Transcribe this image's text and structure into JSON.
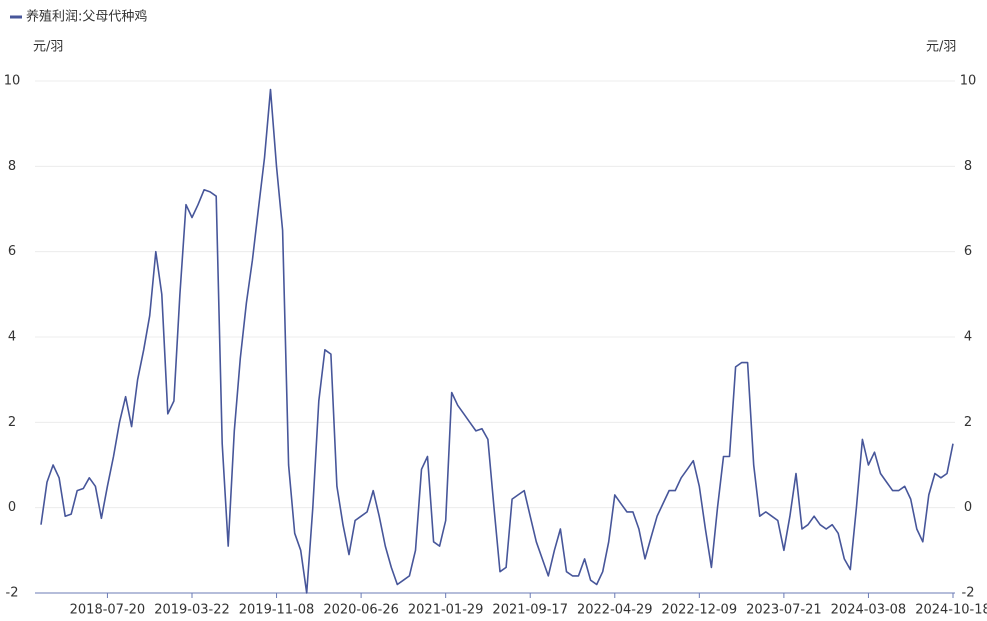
{
  "chart_data": {
    "type": "line",
    "y_label": "元/羽",
    "y2_label": "元/羽",
    "categories": [
      null,
      null,
      null,
      null,
      null,
      null,
      null,
      null,
      null,
      null,
      null,
      "2018-07-20",
      null,
      null,
      null,
      null,
      null,
      null,
      null,
      null,
      null,
      null,
      null,
      null,
      null,
      "2019-03-22",
      null,
      null,
      null,
      null,
      null,
      null,
      null,
      null,
      null,
      null,
      null,
      null,
      null,
      "2019-11-08",
      null,
      null,
      null,
      null,
      null,
      null,
      null,
      null,
      null,
      null,
      null,
      null,
      null,
      "2020-06-26",
      null,
      null,
      null,
      null,
      null,
      null,
      null,
      null,
      null,
      null,
      null,
      null,
      null,
      "2021-01-29",
      null,
      null,
      null,
      null,
      null,
      null,
      null,
      null,
      null,
      null,
      null,
      null,
      null,
      "2021-09-17",
      null,
      null,
      null,
      null,
      null,
      null,
      null,
      null,
      null,
      null,
      null,
      null,
      null,
      "2022-04-29",
      null,
      null,
      null,
      null,
      null,
      null,
      null,
      null,
      null,
      null,
      null,
      null,
      null,
      "2022-12-09",
      null,
      null,
      null,
      null,
      null,
      null,
      null,
      null,
      null,
      null,
      null,
      null,
      null,
      "2023-07-21",
      null,
      null,
      null,
      null,
      null,
      null,
      null,
      null,
      null,
      null,
      null,
      null,
      null,
      "2024-03-08",
      null,
      null,
      null,
      null,
      null,
      null,
      null,
      null,
      null,
      null,
      null,
      null,
      null,
      "2024-10-18"
    ],
    "series": [
      {
        "name": "养殖利润:父母代种鸡",
        "color": "#47569a",
        "values": [
          -0.4,
          0.6,
          1.0,
          0.7,
          -0.2,
          -0.15,
          0.4,
          0.45,
          0.7,
          0.5,
          -0.25,
          0.5,
          1.2,
          2.0,
          2.6,
          1.9,
          3.0,
          3.7,
          4.5,
          6.0,
          5.0,
          2.2,
          2.5,
          5.0,
          7.1,
          6.8,
          7.1,
          7.45,
          7.4,
          7.3,
          1.5,
          -0.9,
          1.8,
          3.5,
          4.8,
          5.8,
          7.0,
          8.2,
          9.8,
          8.0,
          6.5,
          1.0,
          -0.6,
          -1.0,
          -2.0,
          0.0,
          2.5,
          3.7,
          3.6,
          0.5,
          -0.4,
          -1.1,
          -0.3,
          -0.2,
          -0.1,
          0.4,
          -0.2,
          -0.9,
          -1.4,
          -1.8,
          -1.7,
          -1.6,
          -1.0,
          0.9,
          1.2,
          -0.8,
          -0.9,
          -0.3,
          2.7,
          2.4,
          2.2,
          2.0,
          1.8,
          1.85,
          1.6,
          0.0,
          -1.5,
          -1.4,
          0.2,
          0.3,
          0.4,
          -0.2,
          -0.8,
          -1.2,
          -1.6,
          -1.0,
          -0.5,
          -1.5,
          -1.6,
          -1.6,
          -1.2,
          -1.7,
          -1.8,
          -1.5,
          -0.8,
          0.3,
          0.1,
          -0.1,
          -0.1,
          -0.5,
          -1.2,
          -0.7,
          -0.2,
          0.1,
          0.4,
          0.4,
          0.7,
          0.9,
          1.1,
          0.5,
          -0.5,
          -1.4,
          0.0,
          1.2,
          1.2,
          3.3,
          3.4,
          3.4,
          1.0,
          -0.2,
          -0.1,
          -0.2,
          -0.3,
          -1.0,
          -0.2,
          0.8,
          -0.5,
          -0.4,
          -0.2,
          -0.4,
          -0.5,
          -0.4,
          -0.6,
          -1.2,
          -1.45,
          0.0,
          1.6,
          1.0,
          1.3,
          0.8,
          0.6,
          0.4,
          0.4,
          0.5,
          0.2,
          -0.5,
          -0.8,
          0.3,
          0.8,
          0.7,
          0.8,
          1.5
        ]
      }
    ],
    "ylim": [
      -2,
      10
    ],
    "yticks": [
      -2,
      0,
      2,
      4,
      6,
      8,
      10
    ],
    "y2lim": [
      -2,
      10
    ],
    "y2ticks": [
      -2,
      0,
      2,
      4,
      6,
      8,
      10
    ],
    "grid": true,
    "legend": "top-left"
  }
}
